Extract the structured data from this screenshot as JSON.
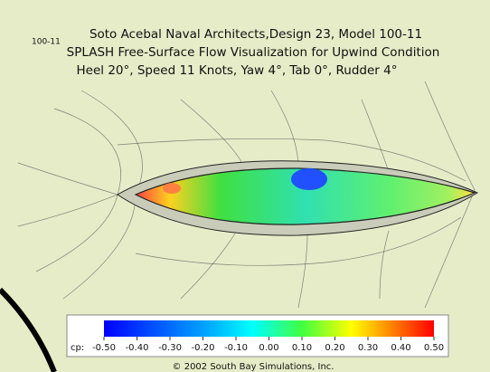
{
  "header": {
    "code": "100-11",
    "title_lines": [
      "Soto Acebal Naval Architects,Design 23, Model 100-11",
      "SPLASH Free-Surface Flow Visualization for Upwind Condition",
      "Heel 20°, Speed 11 Knots, Yaw 4°, Tab 0°, Rudder 4°"
    ]
  },
  "colorbar": {
    "label": "cp:",
    "range": [
      -0.5,
      0.5
    ],
    "ticks": [
      {
        "value": -0.5,
        "label": "-0.50"
      },
      {
        "value": -0.4,
        "label": "-0.40"
      },
      {
        "value": -0.3,
        "label": "-0.30"
      },
      {
        "value": -0.2,
        "label": "-0.20"
      },
      {
        "value": -0.1,
        "label": "-0.10"
      },
      {
        "value": 0,
        "label": "0.00"
      },
      {
        "value": 0.1,
        "label": "0.10"
      },
      {
        "value": 0.2,
        "label": "0.20"
      },
      {
        "value": 0.3,
        "label": "0.30"
      },
      {
        "value": 0.4,
        "label": "0.40"
      },
      {
        "value": 0.5,
        "label": "0.50"
      }
    ]
  },
  "footer": {
    "copyright": "© 2002 South Bay Simulations, Inc."
  }
}
